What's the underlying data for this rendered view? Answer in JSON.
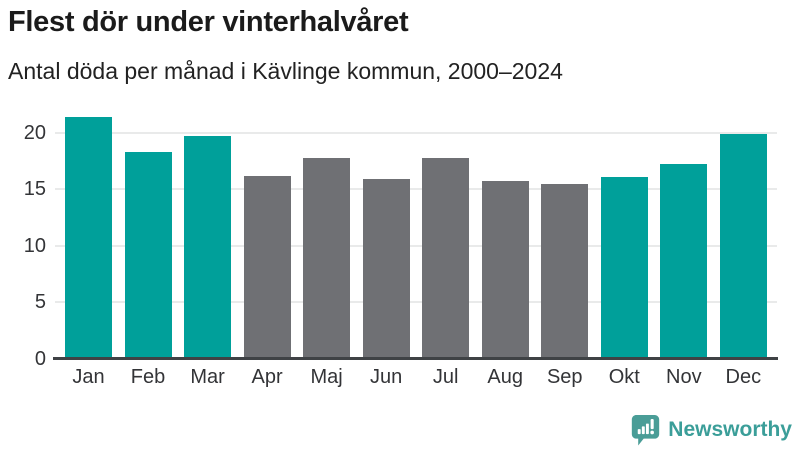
{
  "title": "Flest dör under vinterhalvåret",
  "subtitle": "Antal döda per månad i Kävlinge kommun, 2000–2024",
  "branding": {
    "name": "Newsworthy",
    "logo_icon": "newsworthy-speech-bubble-chart-icon",
    "logo_color": "#4a9d97",
    "text_color": "#3b9e99"
  },
  "colors": {
    "winter": "#00a09a",
    "summer": "#6f7074",
    "axis": "#3f4245",
    "gridline": "#e9eaea",
    "tick_label": "#333437"
  },
  "chart_data": {
    "type": "bar",
    "title": "Flest dör under vinterhalvåret",
    "subtitle": "Antal döda per månad i Kävlinge kommun, 2000–2024",
    "categories": [
      "Jan",
      "Feb",
      "Mar",
      "Apr",
      "Maj",
      "Jun",
      "Jul",
      "Aug",
      "Sep",
      "Okt",
      "Nov",
      "Dec"
    ],
    "values": [
      21.4,
      18.3,
      19.7,
      16.2,
      17.8,
      15.9,
      17.8,
      15.7,
      15.5,
      16.1,
      17.2,
      19.9
    ],
    "bar_groups": [
      "winter",
      "winter",
      "winter",
      "summer",
      "summer",
      "summer",
      "summer",
      "summer",
      "summer",
      "winter",
      "winter",
      "winter"
    ],
    "xlabel": "",
    "ylabel": "",
    "ylim": [
      0,
      22
    ],
    "yticks": [
      0,
      5,
      10,
      15,
      20
    ],
    "grid": true,
    "legend": false
  }
}
